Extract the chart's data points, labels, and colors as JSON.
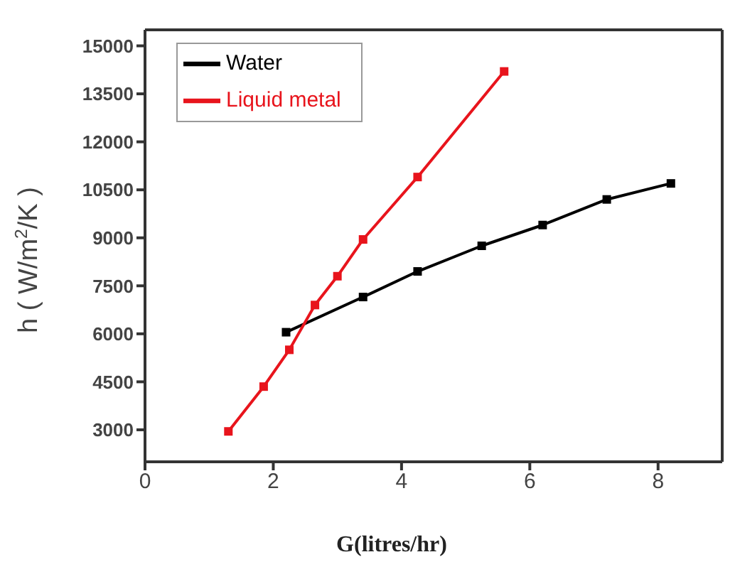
{
  "chart_data": {
    "type": "line",
    "xlabel": "G(litres/hr)",
    "ylabel": "h ( W/m$^{2}$/K )",
    "xlim": [
      0,
      9
    ],
    "xticks": [
      0,
      2,
      4,
      6,
      8
    ],
    "ylim": [
      2000,
      15500
    ],
    "yticks": [
      3000,
      4500,
      6000,
      7500,
      9000,
      10500,
      12000,
      13500,
      15000
    ],
    "legend": "top left",
    "marker": "square",
    "line_style": "solid",
    "series": [
      {
        "name": "Water",
        "color": "#000000",
        "x": [
          2.2,
          3.4,
          4.25,
          5.25,
          6.2,
          7.2,
          8.2
        ],
        "values": [
          6050,
          7150,
          7950,
          8750,
          9400,
          10200,
          10700
        ]
      },
      {
        "name": "Liquid metal",
        "color": "#e8141c",
        "x": [
          1.3,
          1.85,
          2.25,
          2.65,
          3.0,
          3.4,
          4.25,
          5.6
        ],
        "values": [
          2950,
          4350,
          5500,
          6900,
          7800,
          8950,
          10900,
          14200
        ]
      }
    ]
  }
}
